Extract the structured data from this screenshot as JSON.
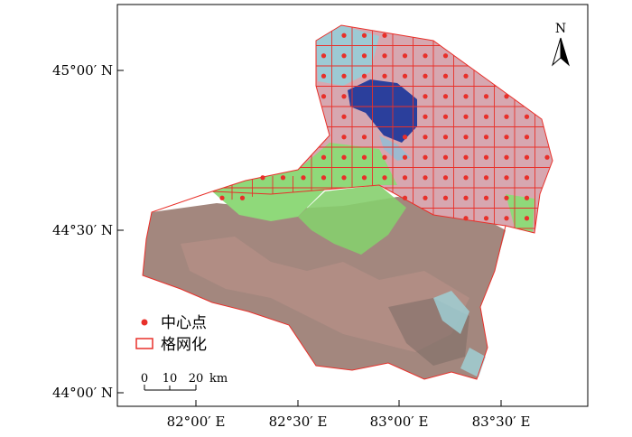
{
  "map": {
    "lat_labels": [
      "45°00′ N",
      "44°30′ N",
      "44°00′ N"
    ],
    "lon_labels": [
      "82°00′ E",
      "82°30′ E",
      "83°00′ E",
      "83°30′ E"
    ],
    "north_label": "N",
    "legend": {
      "point_label": "中心点",
      "grid_label": "格网化",
      "point_color": "#e8302a",
      "grid_color": "#e8302a"
    },
    "scale": {
      "ticks": [
        "0",
        "10",
        "20"
      ],
      "unit": "km"
    }
  }
}
